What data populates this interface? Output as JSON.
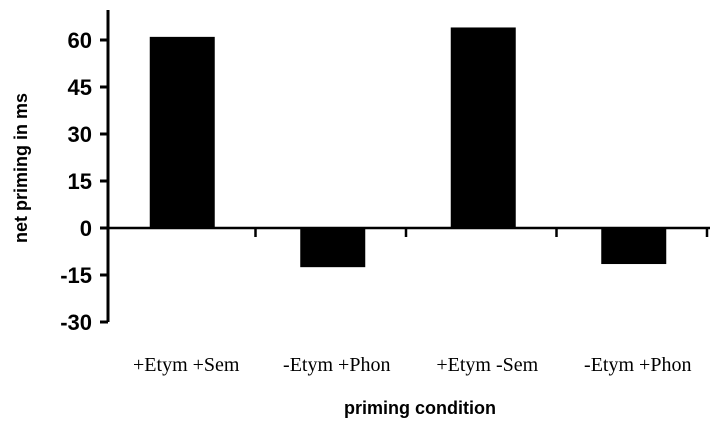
{
  "chart_data": {
    "type": "bar",
    "title": "",
    "xlabel": "priming condition",
    "ylabel": "net priming in ms",
    "categories": [
      "+Etym +Sem",
      "-Etym +Phon",
      "+Etym -Sem",
      "-Etym +Phon"
    ],
    "values": [
      61,
      -12.5,
      64,
      -11.5
    ],
    "ylim": [
      -30,
      60
    ],
    "yticks": [
      60,
      45,
      30,
      15,
      0,
      -15,
      -30
    ],
    "grid": false,
    "legend": "none",
    "bar_color": "#000000"
  }
}
